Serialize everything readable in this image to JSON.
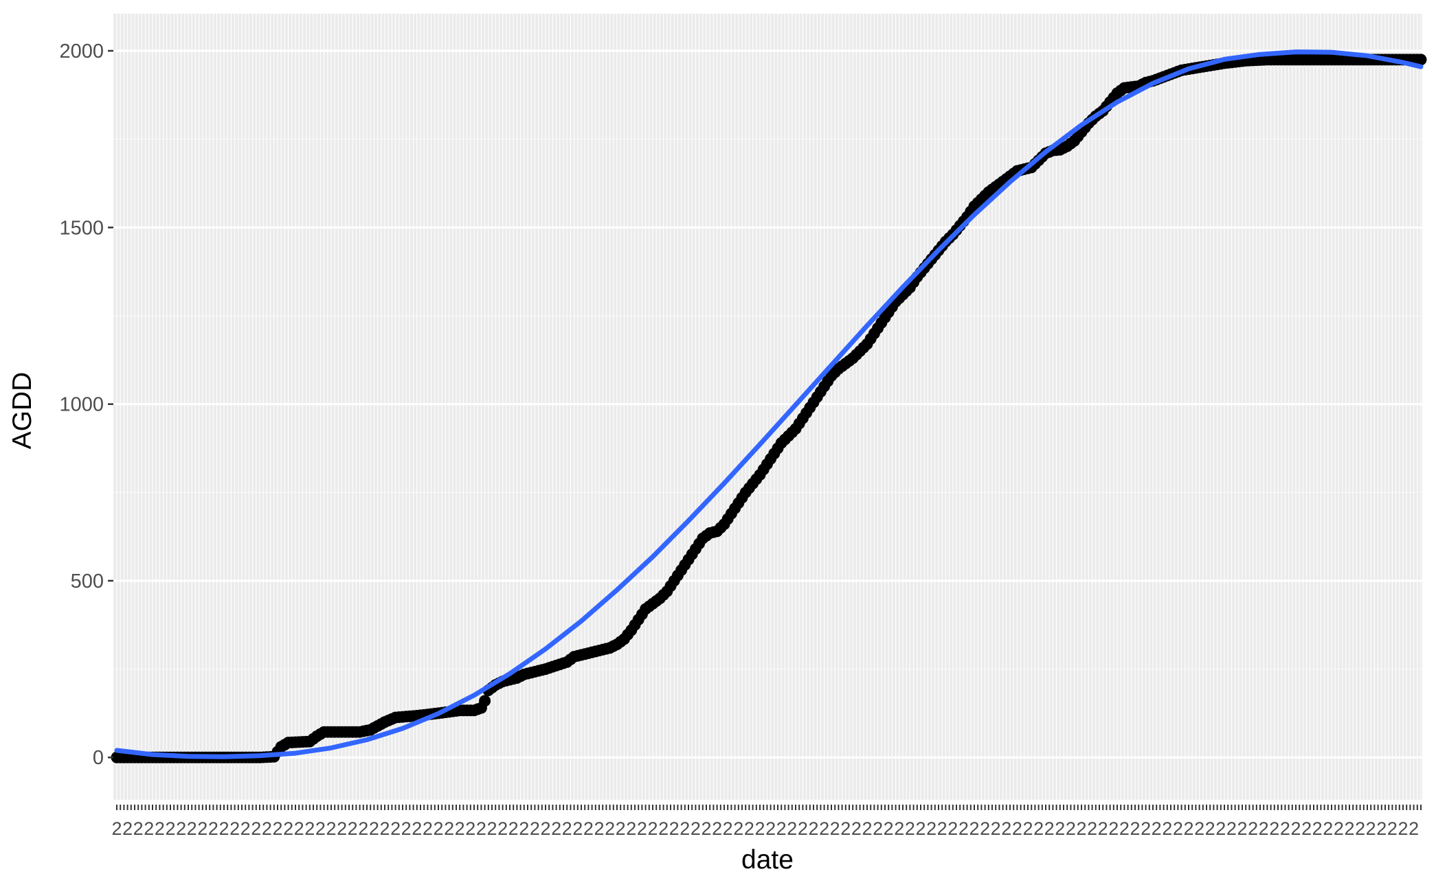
{
  "chart_data": {
    "type": "scatter",
    "title": "",
    "xlabel": "date",
    "ylabel": "AGDD",
    "ylim": [
      -120,
      2105
    ],
    "y_ticks": [
      0,
      500,
      1000,
      1500,
      2000
    ],
    "x_tick_label": "2",
    "x_scale": "discrete (one category per day, ~365 unreadable overlapping labels)",
    "grid": true,
    "legend": "none",
    "colors": {
      "panel": "#ebebeb",
      "grid": "#ffffff",
      "points": "#000000",
      "smooth": "#3366ff",
      "tick_text": "#4d4d4d"
    },
    "series": [
      {
        "kind": "points",
        "x_index_range": [
          0,
          365
        ],
        "points": [
          [
            0,
            0
          ],
          [
            40,
            0
          ],
          [
            44,
            2
          ],
          [
            46,
            30
          ],
          [
            48,
            42
          ],
          [
            54,
            45
          ],
          [
            56,
            60
          ],
          [
            58,
            72
          ],
          [
            68,
            72
          ],
          [
            71,
            78
          ],
          [
            75,
            100
          ],
          [
            78,
            113
          ],
          [
            84,
            118
          ],
          [
            90,
            125
          ],
          [
            96,
            133
          ],
          [
            100,
            133
          ],
          [
            102,
            140
          ],
          [
            103,
            160
          ],
          [
            104,
            190
          ],
          [
            106,
            205
          ],
          [
            108,
            215
          ],
          [
            112,
            225
          ],
          [
            114,
            235
          ],
          [
            118,
            245
          ],
          [
            120,
            250
          ],
          [
            126,
            270
          ],
          [
            128,
            285
          ],
          [
            130,
            290
          ],
          [
            134,
            300
          ],
          [
            136,
            305
          ],
          [
            138,
            310
          ],
          [
            140,
            320
          ],
          [
            142,
            335
          ],
          [
            144,
            360
          ],
          [
            146,
            390
          ],
          [
            148,
            420
          ],
          [
            150,
            435
          ],
          [
            152,
            450
          ],
          [
            154,
            470
          ],
          [
            156,
            500
          ],
          [
            158,
            530
          ],
          [
            160,
            560
          ],
          [
            162,
            590
          ],
          [
            164,
            620
          ],
          [
            166,
            635
          ],
          [
            168,
            640
          ],
          [
            170,
            660
          ],
          [
            172,
            690
          ],
          [
            174,
            720
          ],
          [
            176,
            750
          ],
          [
            178,
            775
          ],
          [
            180,
            800
          ],
          [
            182,
            830
          ],
          [
            184,
            860
          ],
          [
            186,
            890
          ],
          [
            188,
            910
          ],
          [
            190,
            930
          ],
          [
            192,
            960
          ],
          [
            194,
            990
          ],
          [
            196,
            1020
          ],
          [
            198,
            1050
          ],
          [
            200,
            1080
          ],
          [
            202,
            1100
          ],
          [
            204,
            1115
          ],
          [
            206,
            1130
          ],
          [
            208,
            1150
          ],
          [
            210,
            1170
          ],
          [
            212,
            1200
          ],
          [
            214,
            1230
          ],
          [
            216,
            1260
          ],
          [
            218,
            1290
          ],
          [
            220,
            1310
          ],
          [
            222,
            1330
          ],
          [
            224,
            1360
          ],
          [
            226,
            1385
          ],
          [
            228,
            1410
          ],
          [
            230,
            1435
          ],
          [
            232,
            1460
          ],
          [
            234,
            1480
          ],
          [
            236,
            1505
          ],
          [
            238,
            1530
          ],
          [
            240,
            1560
          ],
          [
            242,
            1580
          ],
          [
            244,
            1600
          ],
          [
            246,
            1615
          ],
          [
            248,
            1630
          ],
          [
            250,
            1645
          ],
          [
            252,
            1660
          ],
          [
            254,
            1665
          ],
          [
            256,
            1670
          ],
          [
            258,
            1690
          ],
          [
            260,
            1710
          ],
          [
            262,
            1718
          ],
          [
            264,
            1720
          ],
          [
            266,
            1730
          ],
          [
            268,
            1745
          ],
          [
            270,
            1770
          ],
          [
            272,
            1795
          ],
          [
            274,
            1815
          ],
          [
            276,
            1830
          ],
          [
            278,
            1855
          ],
          [
            280,
            1880
          ],
          [
            282,
            1895
          ],
          [
            286,
            1900
          ],
          [
            288,
            1910
          ],
          [
            290,
            1915
          ],
          [
            294,
            1930
          ],
          [
            298,
            1945
          ],
          [
            304,
            1955
          ],
          [
            310,
            1965
          ],
          [
            316,
            1972
          ],
          [
            322,
            1975
          ],
          [
            330,
            1975
          ],
          [
            365,
            1975
          ]
        ]
      },
      {
        "kind": "smooth",
        "color": "#3366ff",
        "points": [
          [
            0,
            20
          ],
          [
            10,
            8
          ],
          [
            20,
            3
          ],
          [
            30,
            2
          ],
          [
            40,
            5
          ],
          [
            50,
            12
          ],
          [
            60,
            27
          ],
          [
            70,
            50
          ],
          [
            80,
            82
          ],
          [
            90,
            124
          ],
          [
            100,
            176
          ],
          [
            110,
            237
          ],
          [
            120,
            307
          ],
          [
            130,
            386
          ],
          [
            140,
            474
          ],
          [
            150,
            568
          ],
          [
            160,
            670
          ],
          [
            170,
            776
          ],
          [
            180,
            886
          ],
          [
            190,
            998
          ],
          [
            200,
            1110
          ],
          [
            210,
            1222
          ],
          [
            220,
            1331
          ],
          [
            230,
            1436
          ],
          [
            240,
            1536
          ],
          [
            250,
            1629
          ],
          [
            260,
            1714
          ],
          [
            270,
            1790
          ],
          [
            280,
            1855
          ],
          [
            290,
            1908
          ],
          [
            300,
            1949
          ],
          [
            310,
            1976
          ],
          [
            320,
            1990
          ],
          [
            330,
            1997
          ],
          [
            340,
            1996
          ],
          [
            350,
            1986
          ],
          [
            360,
            1967
          ],
          [
            365,
            1955
          ]
        ]
      }
    ]
  }
}
